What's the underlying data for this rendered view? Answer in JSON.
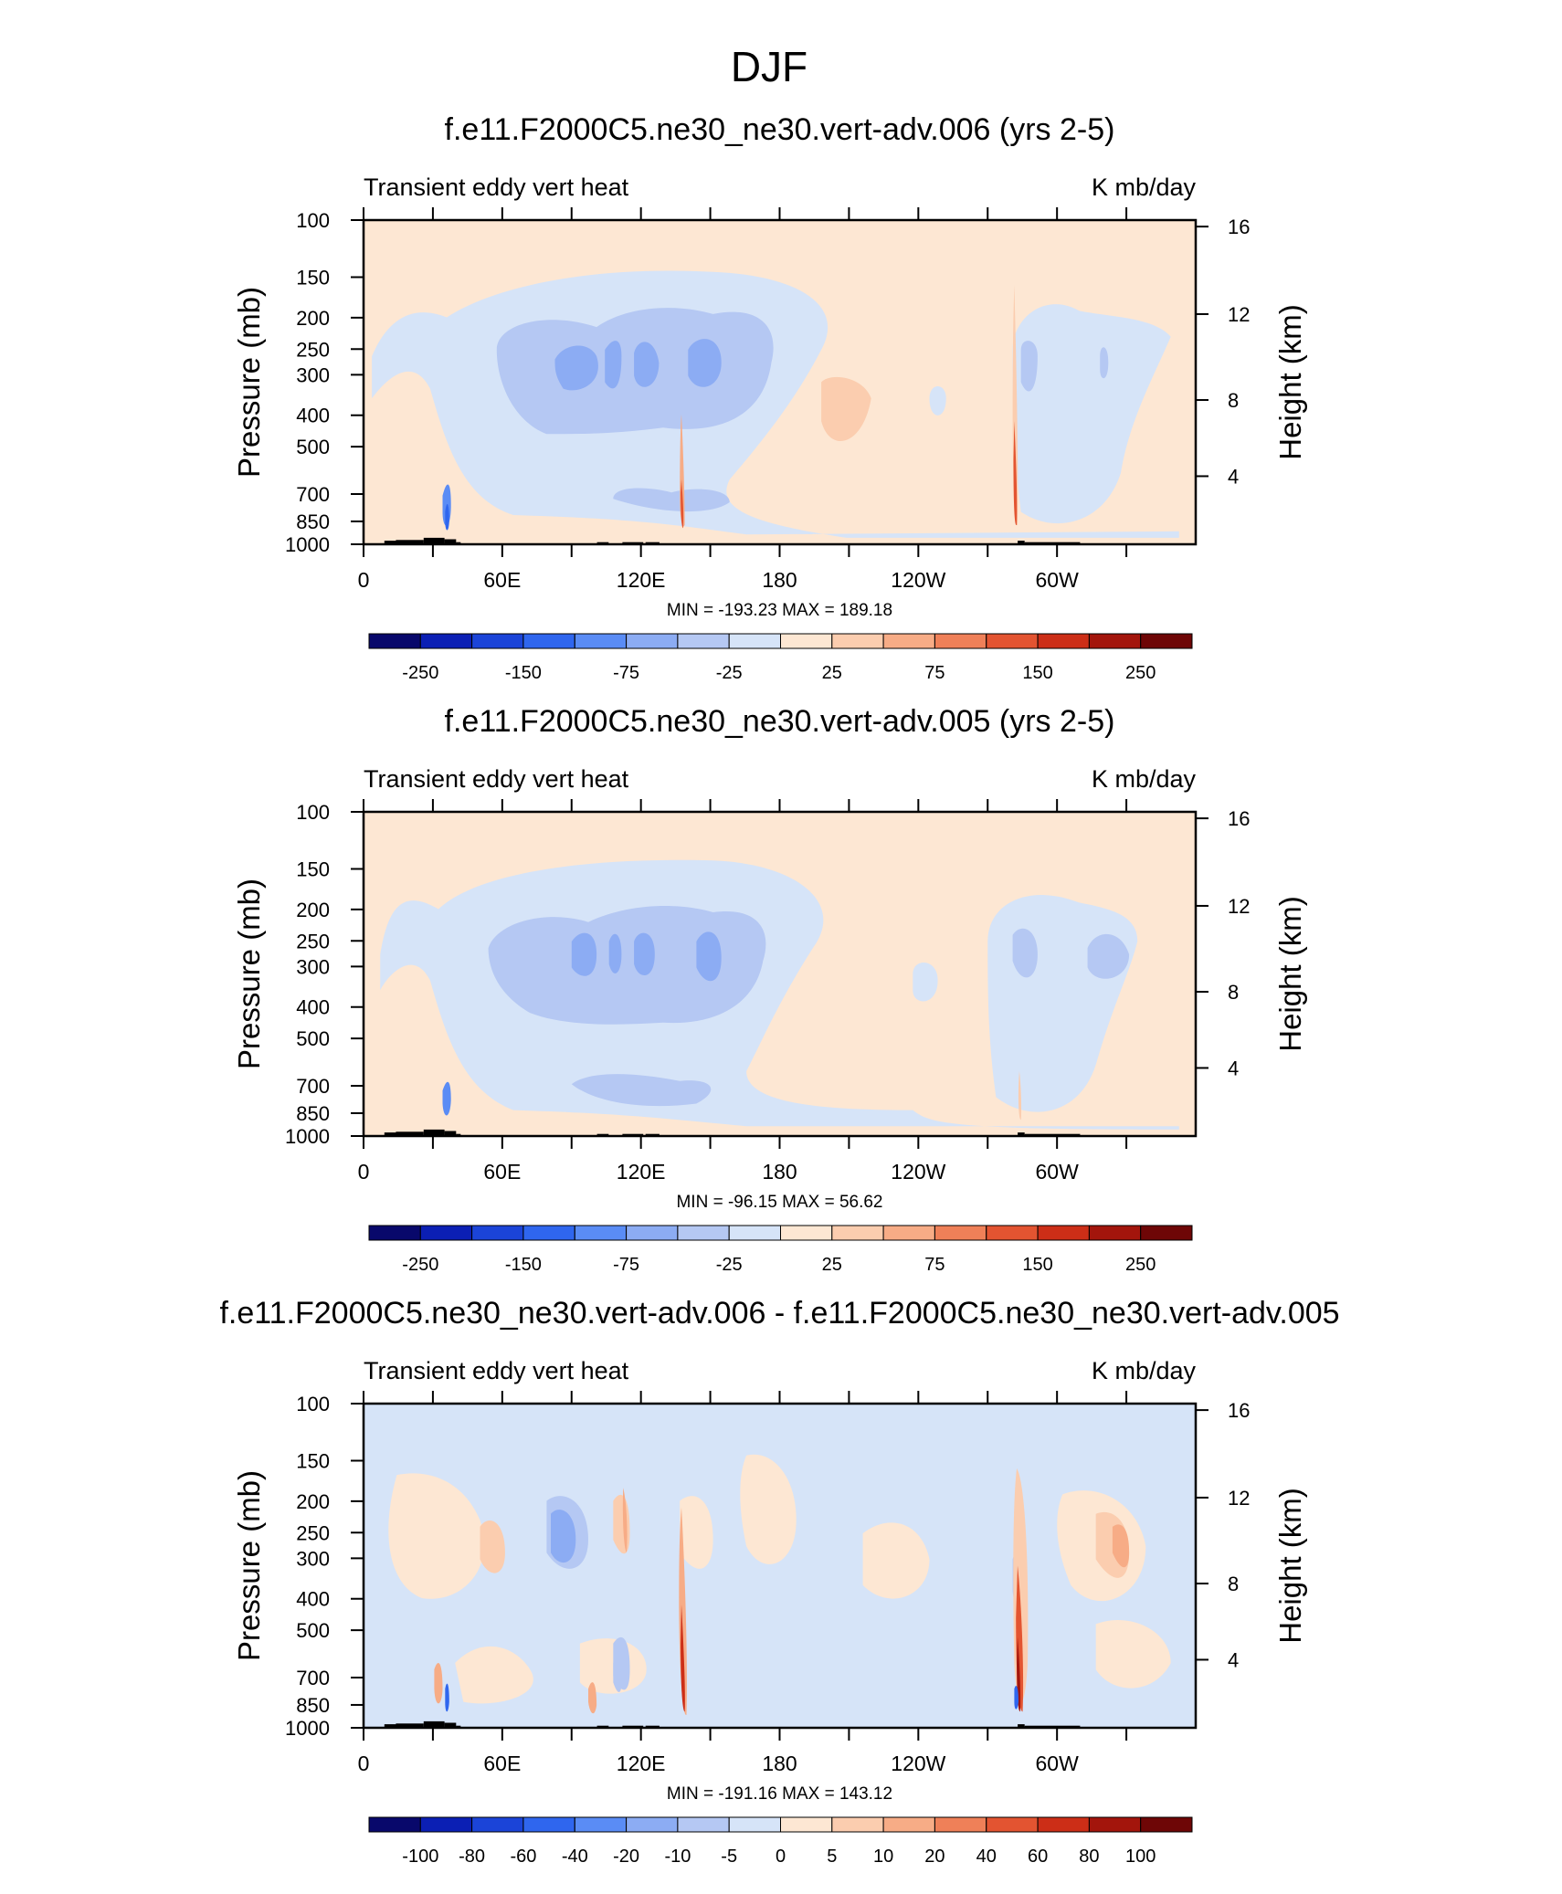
{
  "figure": {
    "title": "DJF"
  },
  "colors": {
    "diverging_scale": [
      "#08086b",
      "#0b1fb4",
      "#1b44d8",
      "#2f66ee",
      "#5a8cf5",
      "#8cacf3",
      "#b5c8f3",
      "#d6e4f8",
      "#fde7d3",
      "#fbcdaf",
      "#f7ac86",
      "#ef8058",
      "#e35431",
      "#cc2e17",
      "#a3150c",
      "#6e0606"
    ],
    "terrain": "#000000"
  },
  "chart_data": [
    {
      "type": "contour",
      "title": "f.e11.F2000C5.ne30_ne30.vert-adv.006 (yrs 2-5)",
      "left_label": "Transient eddy vert heat",
      "right_label": "K mb/day",
      "ylabel": "Pressure (mb)",
      "y2label": "Height (km)",
      "x_ticks": [
        "0",
        "60E",
        "120E",
        "180",
        "120W",
        "60W"
      ],
      "y_ticks": [
        "100",
        "150",
        "200",
        "250",
        "300",
        "400",
        "500",
        "700",
        "850",
        "1000"
      ],
      "y2_ticks": [
        "16",
        "12",
        "8",
        "4"
      ],
      "stats": "MIN = -193.23  MAX = 189.18",
      "colorbar_labels": [
        "-250",
        "-150",
        "-75",
        "-25",
        "25",
        "75",
        "150",
        "250"
      ]
    },
    {
      "type": "contour",
      "title": "f.e11.F2000C5.ne30_ne30.vert-adv.005 (yrs 2-5)",
      "left_label": "Transient eddy vert heat",
      "right_label": "K mb/day",
      "ylabel": "Pressure (mb)",
      "y2label": "Height (km)",
      "x_ticks": [
        "0",
        "60E",
        "120E",
        "180",
        "120W",
        "60W"
      ],
      "y_ticks": [
        "100",
        "150",
        "200",
        "250",
        "300",
        "400",
        "500",
        "700",
        "850",
        "1000"
      ],
      "y2_ticks": [
        "16",
        "12",
        "8",
        "4"
      ],
      "stats": "MIN = -96.15  MAX = 56.62",
      "colorbar_labels": [
        "-250",
        "-150",
        "-75",
        "-25",
        "25",
        "75",
        "150",
        "250"
      ]
    },
    {
      "type": "contour",
      "title": "f.e11.F2000C5.ne30_ne30.vert-adv.006 - f.e11.F2000C5.ne30_ne30.vert-adv.005",
      "left_label": "Transient eddy vert heat",
      "right_label": "K mb/day",
      "ylabel": "Pressure (mb)",
      "y2label": "Height (km)",
      "x_ticks": [
        "0",
        "60E",
        "120E",
        "180",
        "120W",
        "60W"
      ],
      "y_ticks": [
        "100",
        "150",
        "200",
        "250",
        "300",
        "400",
        "500",
        "700",
        "850",
        "1000"
      ],
      "y2_ticks": [
        "16",
        "12",
        "8",
        "4"
      ],
      "stats": "MIN = -191.16  MAX = 143.12",
      "colorbar_labels": [
        "-100",
        "-80",
        "-60",
        "-40",
        "-20",
        "-10",
        "-5",
        "0",
        "5",
        "10",
        "20",
        "40",
        "60",
        "80",
        "100"
      ]
    }
  ]
}
